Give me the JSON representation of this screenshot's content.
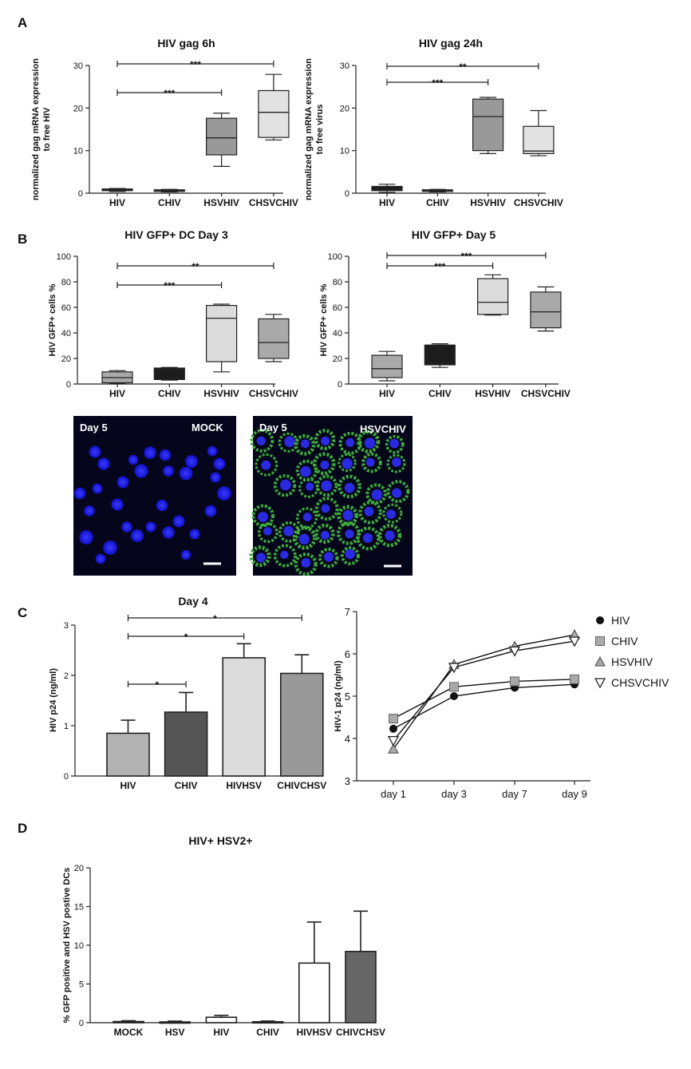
{
  "panel_labels": [
    "A",
    "B",
    "C",
    "D"
  ],
  "micrographs": [
    {
      "day": "Day 5",
      "condition": "MOCK"
    },
    {
      "day": "Day 5",
      "condition": "HSVCHIV"
    }
  ],
  "chart_data": [
    {
      "id": "A1",
      "type": "box",
      "title": "HIV gag 6h",
      "ylabel": [
        "normalized gag mRNA expression",
        "to free HIV"
      ],
      "ylim": [
        0,
        30
      ],
      "yticks": [
        0,
        10,
        20,
        30
      ],
      "categories": [
        "HIV",
        "CHIV",
        "HSVHIV",
        "CHSVCHIV"
      ],
      "colors": [
        "#1c1c1c",
        "#333333",
        "#999999",
        "#e2e2e2"
      ],
      "boxes": [
        {
          "min": 0.4,
          "q1": 0.6,
          "median": 0.8,
          "q3": 1.0,
          "max": 1.1
        },
        {
          "min": 0.3,
          "q1": 0.5,
          "median": 0.6,
          "q3": 0.8,
          "max": 0.9
        },
        {
          "min": 6.3,
          "q1": 9.0,
          "median": 13.0,
          "q3": 17.6,
          "max": 18.8
        },
        {
          "min": 12.5,
          "q1": 13.1,
          "median": 19.0,
          "q3": 24.1,
          "max": 27.9
        }
      ],
      "significance": [
        {
          "from": 0,
          "to": 3,
          "label": "***"
        },
        {
          "from": 0,
          "to": 2,
          "label": "***"
        }
      ]
    },
    {
      "id": "A2",
      "type": "box",
      "title": "HIV gag 24h",
      "ylabel": [
        "normalized gag mRNA expression",
        "to free virus"
      ],
      "ylim": [
        0,
        30
      ],
      "yticks": [
        0,
        10,
        20,
        30
      ],
      "categories": [
        "HIV",
        "CHIV",
        "HSVHIV",
        "CHSVCHIV"
      ],
      "colors": [
        "#1c1c1c",
        "#333333",
        "#999999",
        "#e2e2e2"
      ],
      "boxes": [
        {
          "min": 0.2,
          "q1": 0.6,
          "median": 1.0,
          "q3": 1.6,
          "max": 2.1
        },
        {
          "min": 0.3,
          "q1": 0.5,
          "median": 0.6,
          "q3": 0.8,
          "max": 0.9
        },
        {
          "min": 9.3,
          "q1": 10.0,
          "median": 18.0,
          "q3": 22.1,
          "max": 22.5
        },
        {
          "min": 8.8,
          "q1": 9.3,
          "median": 9.9,
          "q3": 15.7,
          "max": 19.4
        }
      ],
      "significance": [
        {
          "from": 0,
          "to": 3,
          "label": "**"
        },
        {
          "from": 0,
          "to": 2,
          "label": "***"
        }
      ]
    },
    {
      "id": "B1",
      "type": "box",
      "title": "HIV GFP+ DC Day 3",
      "ylabel": [
        "HIV GFP+ cells %"
      ],
      "ylim": [
        0,
        100
      ],
      "yticks": [
        0,
        20,
        40,
        60,
        80,
        100
      ],
      "categories": [
        "HIV",
        "CHIV",
        "HSVHIV",
        "CHSVCHIV"
      ],
      "colors": [
        "#a9a9a9",
        "#1c1c1c",
        "#dcdcdc",
        "#a9a9a9"
      ],
      "boxes": [
        {
          "min": 0.5,
          "q1": 1.0,
          "median": 5.0,
          "q3": 9.5,
          "max": 10.5
        },
        {
          "min": 3.0,
          "q1": 3.5,
          "median": 11.5,
          "q3": 12.5,
          "max": 13.0
        },
        {
          "min": 9.5,
          "q1": 17.5,
          "median": 51.5,
          "q3": 61.5,
          "max": 62.5
        },
        {
          "min": 17.5,
          "q1": 20.0,
          "median": 32.5,
          "q3": 51.0,
          "max": 54.5
        }
      ],
      "significance": [
        {
          "from": 0,
          "to": 3,
          "label": "**"
        },
        {
          "from": 0,
          "to": 2,
          "label": "***"
        }
      ]
    },
    {
      "id": "B2",
      "type": "box",
      "title": "HIV GFP+ Day 5",
      "ylabel": [
        "HIV GFP+ cells %"
      ],
      "ylim": [
        0,
        100
      ],
      "yticks": [
        0,
        20,
        40,
        60,
        80,
        100
      ],
      "categories": [
        "HIV",
        "CHIV",
        "HSVHIV",
        "CHSVCHIV"
      ],
      "colors": [
        "#a9a9a9",
        "#1c1c1c",
        "#dcdcdc",
        "#a9a9a9"
      ],
      "boxes": [
        {
          "min": 2.5,
          "q1": 5.0,
          "median": 12.0,
          "q3": 22.5,
          "max": 25.5
        },
        {
          "min": 13.0,
          "q1": 15.0,
          "median": 16.5,
          "q3": 30.5,
          "max": 31.5
        },
        {
          "min": 54.0,
          "q1": 54.5,
          "median": 64.0,
          "q3": 82.5,
          "max": 85.5
        },
        {
          "min": 41.5,
          "q1": 44.0,
          "median": 56.5,
          "q3": 72.0,
          "max": 76.0
        }
      ],
      "significance": [
        {
          "from": 0,
          "to": 3,
          "label": "***"
        },
        {
          "from": 0,
          "to": 2,
          "label": "***"
        }
      ]
    },
    {
      "id": "C1",
      "type": "bar",
      "title": "Day 4",
      "ylabel": "HIV p24 (ng/ml)",
      "ylim": [
        0,
        3
      ],
      "yticks": [
        0,
        1,
        2,
        3
      ],
      "categories": [
        "HIV",
        "CHIV",
        "HIVHSV",
        "CHIVCHSV"
      ],
      "values": [
        0.85,
        1.27,
        2.35,
        2.04
      ],
      "errors": [
        0.26,
        0.39,
        0.28,
        0.37
      ],
      "colors": [
        "#b3b3b3",
        "#555555",
        "#dcdcdc",
        "#999999"
      ],
      "significance": [
        {
          "from": 0,
          "to": 3,
          "label": "*"
        },
        {
          "from": 0,
          "to": 2,
          "label": "*"
        },
        {
          "from": 0,
          "to": 1,
          "label": "*"
        }
      ]
    },
    {
      "id": "C2",
      "type": "line",
      "ylabel": "HIV-1 p24 (ng/ml)",
      "ylim": [
        3,
        7
      ],
      "yticks": [
        3,
        4,
        5,
        6,
        7
      ],
      "x": [
        "day 1",
        "day 3",
        "day 7",
        "day 9"
      ],
      "legend_position": "top-right",
      "series": [
        {
          "name": "HIV",
          "marker": "circle",
          "fill": "#111111",
          "values": [
            4.23,
            5.0,
            5.2,
            5.28
          ]
        },
        {
          "name": "CHIV",
          "marker": "square",
          "fill": "#a9a9a9",
          "values": [
            4.47,
            5.22,
            5.35,
            5.4
          ]
        },
        {
          "name": "HSVHIV",
          "marker": "triangle-up",
          "fill": "#a9a9a9",
          "values": [
            3.75,
            5.75,
            6.18,
            6.45
          ]
        },
        {
          "name": "CHSVCHIV",
          "marker": "triangle-down",
          "fill": "#ffffff",
          "values": [
            3.95,
            5.68,
            6.07,
            6.3
          ]
        }
      ]
    },
    {
      "id": "D1",
      "type": "bar",
      "title": "HIV+ HSV2+",
      "ylabel": [
        "% GFP positive and HSV postive DCs"
      ],
      "ylim": [
        0,
        20
      ],
      "yticks": [
        0,
        5,
        10,
        15,
        20
      ],
      "categories": [
        "MOCK",
        "HSV",
        "HIV",
        "CHIV",
        "HIVHSV",
        "CHIVCHSV"
      ],
      "values": [
        0.15,
        0.1,
        0.7,
        0.12,
        7.7,
        9.2
      ],
      "errors": [
        0.1,
        0.1,
        0.25,
        0.1,
        5.3,
        5.2
      ],
      "colors": [
        "#ffffff",
        "#ffffff",
        "#ffffff",
        "#ffffff",
        "#ffffff",
        "#666666"
      ]
    }
  ]
}
